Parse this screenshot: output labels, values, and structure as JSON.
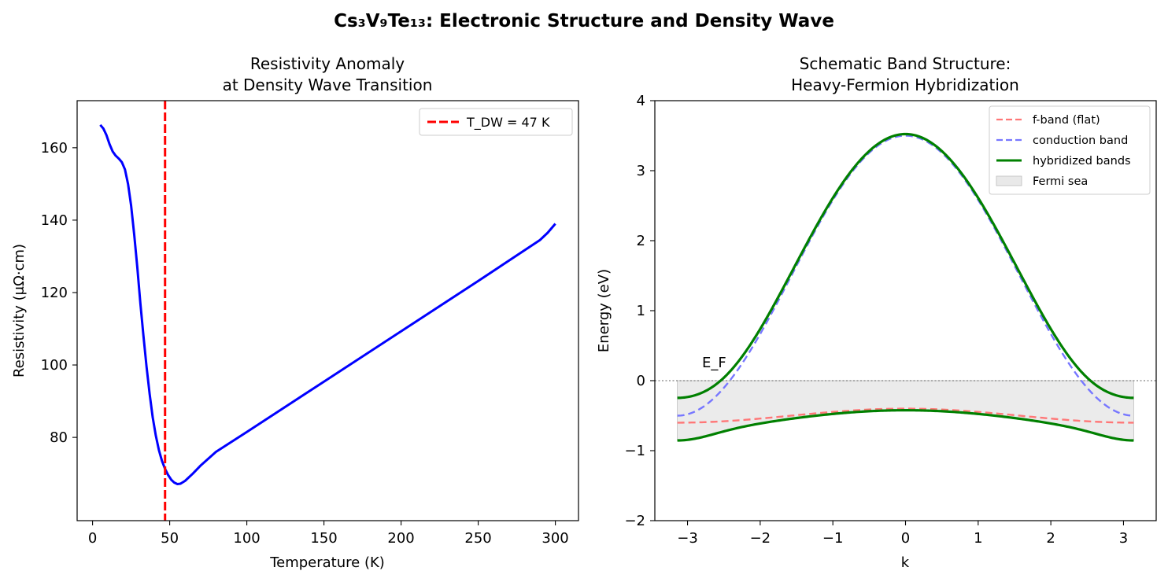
{
  "suptitle": "Cs₃V₉Te₁₃: Electronic Structure and Density Wave",
  "chart_data": [
    {
      "type": "line",
      "title_line1": "Resistivity Anomaly",
      "title_line2": "at Density Wave Transition",
      "xlabel": "Temperature (K)",
      "ylabel": "Resistivity (μΩ·cm)",
      "xlim": [
        -10,
        315
      ],
      "ylim": [
        57,
        173
      ],
      "xticks": [
        0,
        50,
        100,
        150,
        200,
        250,
        300
      ],
      "yticks": [
        80,
        100,
        120,
        140,
        160
      ],
      "series": [
        {
          "name": "resistivity",
          "color": "#0000ff",
          "x": [
            5,
            7,
            9,
            11,
            13,
            15,
            17,
            19,
            21,
            23,
            25,
            27,
            29,
            31,
            33,
            35,
            37,
            39,
            41,
            43,
            45,
            47,
            49,
            51,
            53,
            55,
            57,
            60,
            65,
            70,
            80,
            100,
            150,
            200,
            250,
            290,
            295,
            300
          ],
          "y": [
            166.3,
            165.3,
            163.5,
            161.0,
            159.0,
            157.8,
            157.0,
            156.0,
            154.0,
            150.0,
            144.0,
            136.0,
            127.0,
            117.0,
            108.0,
            99.5,
            92.0,
            85.5,
            80.5,
            76.5,
            73.5,
            71.3,
            69.6,
            68.3,
            67.5,
            67.1,
            67.2,
            68.0,
            70.0,
            72.2,
            76.0,
            81.5,
            95.4,
            109.3,
            123.2,
            134.5,
            136.5,
            139.0
          ]
        }
      ],
      "vline": {
        "x": 47,
        "color": "#ff0000",
        "style": "dashed"
      },
      "legend": {
        "entries": [
          "T_DW = 47 K"
        ],
        "position": "upper right"
      }
    },
    {
      "type": "line",
      "title_line1": "Schematic Band Structure:",
      "title_line2": "Heavy-Fermion Hybridization",
      "xlabel": "k",
      "ylabel": "Energy (eV)",
      "xlim": [
        -3.45,
        3.45
      ],
      "ylim": [
        -2,
        4
      ],
      "xticks": [
        -3,
        -2,
        -1,
        0,
        1,
        2,
        3
      ],
      "yticks": [
        -2,
        -1,
        0,
        1,
        2,
        3,
        4
      ],
      "series": [
        {
          "name": "f-band (flat)",
          "color": "#ff7777",
          "style": "dashed",
          "model": "E_f = -0.4 - 0.1*(1 - cos k)",
          "k_range": [
            -3.14,
            3.14
          ]
        },
        {
          "name": "conduction band",
          "color": "#7777ff",
          "style": "dashed",
          "model": "E_c = 1.5 + 2*cos k",
          "k_range": [
            -3.14,
            3.14
          ]
        },
        {
          "name": "hybridized bands",
          "color": "#008000",
          "style": "solid",
          "model": "E± = (E_c+E_f)/2 ± sqrt(((E_c-E_f)/2)^2 + 0.3^2)",
          "k_range": [
            -3.14,
            3.14
          ]
        }
      ],
      "fill": {
        "name": "Fermi sea",
        "color": "#d3d3d3",
        "between": [
          "lower hybridized band",
          "E = 0"
        ]
      },
      "hline": {
        "y": 0,
        "color": "#808080",
        "style": "dotted"
      },
      "annotation": {
        "text": "E_F",
        "x": -2.9,
        "y": 0.15
      },
      "legend": {
        "entries": [
          "f-band (flat)",
          "conduction band",
          "hybridized bands",
          "Fermi sea"
        ],
        "position": "upper right"
      }
    }
  ]
}
